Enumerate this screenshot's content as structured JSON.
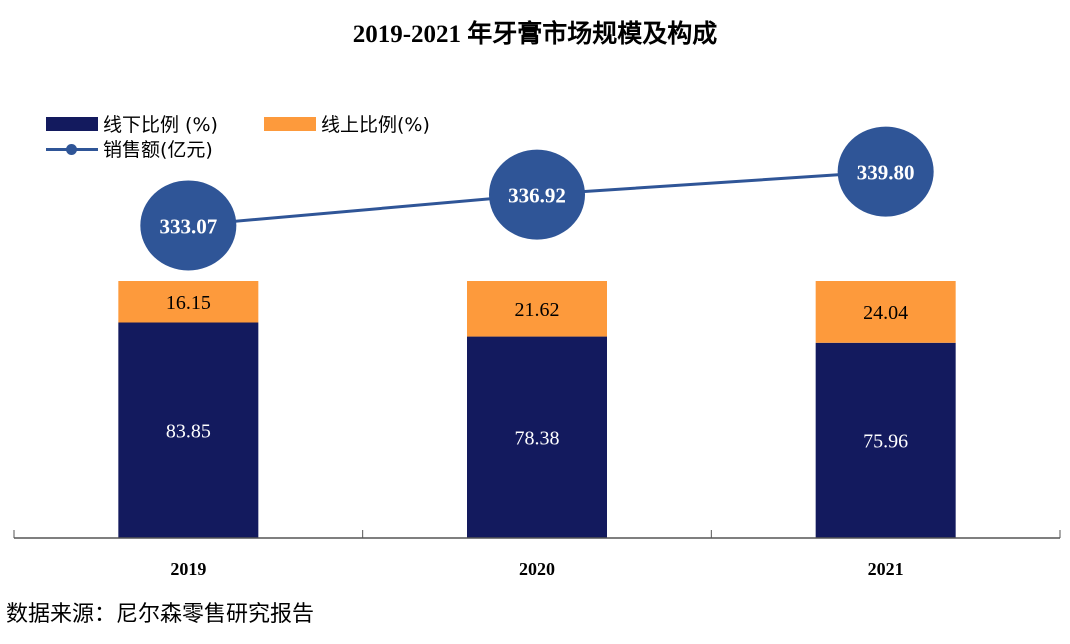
{
  "chart_data": {
    "type": "bar",
    "subtype": "stacked-bar-with-line",
    "title": "2019-2021 年牙膏市场规模及构成",
    "categories": [
      "2019",
      "2020",
      "2021"
    ],
    "series": [
      {
        "name": "线下比例 (%)",
        "kind": "bar",
        "color": "#131a5e",
        "values": [
          83.85,
          78.38,
          75.96
        ]
      },
      {
        "name": "线上比例(%)",
        "kind": "bar",
        "color": "#fd9a3c",
        "values": [
          16.15,
          21.62,
          24.04
        ]
      },
      {
        "name": "销售额(亿元)",
        "kind": "line",
        "color": "#2f5597",
        "values": [
          333.07,
          336.92,
          339.8
        ]
      }
    ],
    "bar_ylim": [
      0,
      100
    ],
    "line_ylim": [
      325,
      345
    ],
    "legend_position": "top-left",
    "grid": false,
    "xlabel": "",
    "ylabel": ""
  },
  "source": "数据来源：尼尔森零售研究报告"
}
